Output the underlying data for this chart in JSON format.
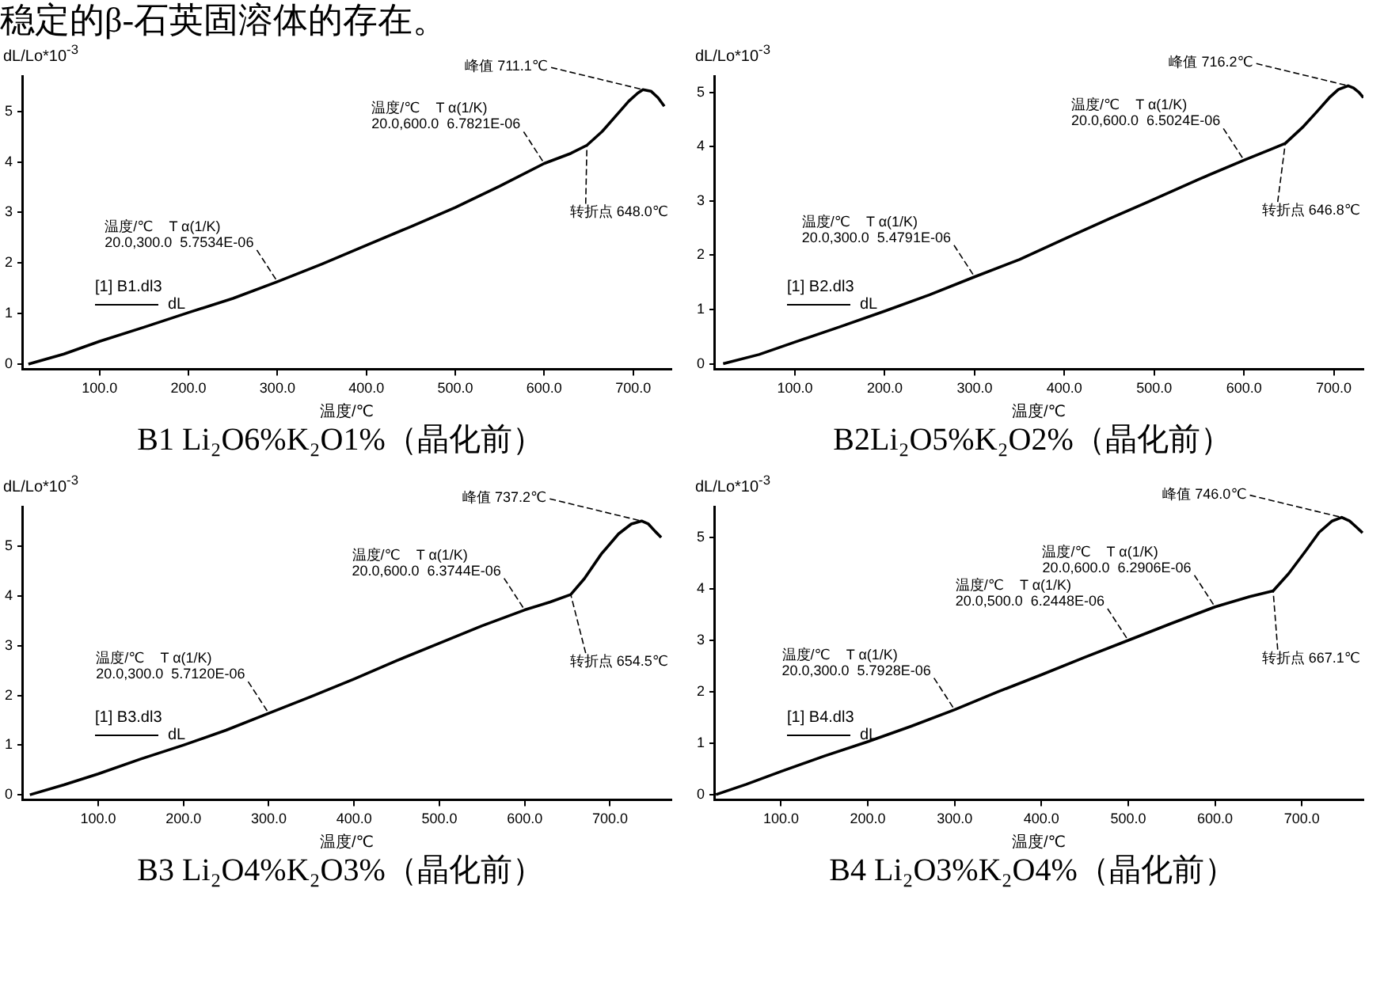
{
  "chart_data": [
    {
      "type": "line",
      "title": "B1 Li₂O6%K₂O1%（晶化前）",
      "annotations": [
        "稳定的β-石英固溶体的存在。",
        {
          "text": "温度/℃    T α(1/K)\n20.0,300.0  5.7534E-06",
          "x": 300,
          "y": 1.63
        },
        {
          "text": "温度/℃    T α(1/K)\n20.0,600.0  6.7821E-06",
          "x": 600,
          "y": 3.97
        },
        {
          "text": "峰值 711.1℃",
          "x": 711,
          "y": 5.43
        },
        {
          "text": "转折点 648.0℃",
          "x": 648,
          "y": 4.33
        }
      ],
      "xlabel": "温度/℃",
      "ylabel": "dL/Lo*10$^{-3}$",
      "legend": "left",
      "legend_title": "[1] B1.dl3",
      "x": [
        20,
        60,
        100,
        150,
        200,
        250,
        300,
        350,
        400,
        450,
        500,
        550,
        600,
        630,
        648,
        665,
        680,
        695,
        705,
        711,
        720,
        728,
        735
      ],
      "series": [
        {
          "name": "dL",
          "color": "#000000",
          "values": [
            0,
            0.2,
            0.45,
            0.73,
            1.02,
            1.3,
            1.63,
            1.98,
            2.35,
            2.72,
            3.1,
            3.52,
            3.97,
            4.17,
            4.33,
            4.6,
            4.9,
            5.2,
            5.36,
            5.43,
            5.4,
            5.27,
            5.1
          ]
        }
      ],
      "xlim": [
        13,
        743
      ],
      "xticks": [
        {
          "value": 100,
          "label": "100.0"
        },
        {
          "value": 200,
          "label": "200.0"
        },
        {
          "value": 300,
          "label": "300.0"
        },
        {
          "value": 400,
          "label": "400.0"
        },
        {
          "value": 500,
          "label": "500.0"
        },
        {
          "value": 600,
          "label": "600.0"
        },
        {
          "value": 700,
          "label": "700.0"
        }
      ],
      "ylim": [
        -0.1,
        5.7
      ],
      "yticks": [
        0,
        1,
        2,
        3,
        4,
        5
      ],
      "grid": false,
      "line_style": "solid",
      "marker": "none"
    },
    {
      "type": "line",
      "title": "B2Li₂O5%K₂O2%（晶化前）",
      "annotations": [
        {
          "text": "温度/℃    T α(1/K)\n20.0,300.0  5.4791E-06",
          "x": 300,
          "y": 1.6
        },
        {
          "text": "温度/℃    T α(1/K)\n20.0,600.0  6.5024E-06",
          "x": 600,
          "y": 3.75
        },
        {
          "text": "峰值 716.2℃",
          "x": 716,
          "y": 5.12
        },
        {
          "text": "转折点 646.8℃",
          "x": 646,
          "y": 4.06
        }
      ],
      "xlabel": "温度/℃",
      "ylabel": "dL/Lo*10$^{-3}$",
      "legend": "left",
      "legend_title": "[1] B2.dl3",
      "x": [
        20,
        60,
        100,
        150,
        200,
        250,
        300,
        350,
        400,
        450,
        500,
        550,
        600,
        630,
        646,
        665,
        680,
        695,
        705,
        716,
        722,
        728,
        733
      ],
      "series": [
        {
          "name": "dL",
          "color": "#000000",
          "values": [
            0,
            0.17,
            0.4,
            0.68,
            0.97,
            1.27,
            1.6,
            1.92,
            2.3,
            2.67,
            3.03,
            3.4,
            3.75,
            3.95,
            4.06,
            4.35,
            4.62,
            4.9,
            5.05,
            5.12,
            5.08,
            5.0,
            4.9
          ]
        }
      ],
      "xlim": [
        10,
        733
      ],
      "xticks": [
        {
          "value": 100,
          "label": "100.0"
        },
        {
          "value": 200,
          "label": "200.0"
        },
        {
          "value": 300,
          "label": "300.0"
        },
        {
          "value": 400,
          "label": "400.0"
        },
        {
          "value": 500,
          "label": "500.0"
        },
        {
          "value": 600,
          "label": "600.0"
        },
        {
          "value": 700,
          "label": "700.0"
        }
      ],
      "ylim": [
        -0.1,
        5.3
      ],
      "yticks": [
        0,
        1,
        2,
        3,
        4,
        5
      ],
      "grid": false,
      "line_style": "solid",
      "marker": "none"
    },
    {
      "type": "line",
      "title": "B3 Li₂O4%K₂O3%（晶化前）",
      "annotations": [
        {
          "text": "温度/℃    T α(1/K)\n20.0,300.0  5.7120E-06",
          "x": 300,
          "y": 1.64
        },
        {
          "text": "温度/℃    T α(1/K)\n20.0,600.0  6.3744E-06",
          "x": 600,
          "y": 3.72
        },
        {
          "text": "峰值 737.2℃",
          "x": 737,
          "y": 5.51
        },
        {
          "text": "转折点 654.5℃",
          "x": 654,
          "y": 4.03
        }
      ],
      "xlabel": "温度/℃",
      "ylabel": "dL/Lo*10$^{-3}$",
      "legend": "left",
      "legend_title": "[1] B3.dl3",
      "x": [
        20,
        60,
        100,
        150,
        200,
        250,
        300,
        350,
        400,
        450,
        500,
        550,
        600,
        630,
        654,
        670,
        690,
        710,
        725,
        737,
        745,
        753,
        760
      ],
      "series": [
        {
          "name": "dL",
          "color": "#000000",
          "values": [
            0,
            0.2,
            0.42,
            0.72,
            1.0,
            1.3,
            1.64,
            1.98,
            2.33,
            2.7,
            3.05,
            3.4,
            3.72,
            3.88,
            4.03,
            4.35,
            4.85,
            5.25,
            5.45,
            5.51,
            5.45,
            5.3,
            5.18
          ]
        }
      ],
      "xlim": [
        11,
        772
      ],
      "xticks": [
        {
          "value": 100,
          "label": "100.0"
        },
        {
          "value": 200,
          "label": "200.0"
        },
        {
          "value": 300,
          "label": "300.0"
        },
        {
          "value": 400,
          "label": "400.0"
        },
        {
          "value": 500,
          "label": "500.0"
        },
        {
          "value": 600,
          "label": "600.0"
        },
        {
          "value": 700,
          "label": "700.0"
        }
      ],
      "ylim": [
        -0.1,
        5.8
      ],
      "yticks": [
        0,
        1,
        2,
        3,
        4,
        5
      ],
      "grid": false,
      "line_style": "solid",
      "marker": "none"
    },
    {
      "type": "line",
      "title": "B4 Li₂O3%K₂O4%（晶化前）",
      "annotations": [
        {
          "text": "温度/℃    T α(1/K)\n20.0,300.0  5.7928E-06",
          "x": 300,
          "y": 1.65
        },
        {
          "text": "温度/℃    T α(1/K)\n20.0,500.0  6.2448E-06",
          "x": 500,
          "y": 3.0
        },
        {
          "text": "温度/℃    T α(1/K)\n20.0,600.0  6.2906E-06",
          "x": 600,
          "y": 3.65
        },
        {
          "text": "峰值 746.0℃",
          "x": 746,
          "y": 5.39
        },
        {
          "text": "转折点 667.1℃",
          "x": 667,
          "y": 3.96
        }
      ],
      "xlabel": "温度/℃",
      "ylabel": "dL/Lo*10$^{-3}$",
      "legend": "left",
      "legend_title": "[1] B4.dl3",
      "x": [
        25,
        60,
        100,
        150,
        200,
        250,
        300,
        350,
        400,
        450,
        500,
        550,
        600,
        640,
        667,
        685,
        705,
        720,
        735,
        746,
        755,
        763,
        770
      ],
      "series": [
        {
          "name": "dL",
          "color": "#000000",
          "values": [
            0,
            0.2,
            0.45,
            0.75,
            1.03,
            1.33,
            1.65,
            2.0,
            2.33,
            2.67,
            3.0,
            3.33,
            3.65,
            3.85,
            3.96,
            4.3,
            4.75,
            5.1,
            5.32,
            5.39,
            5.32,
            5.2,
            5.09
          ]
        }
      ],
      "xlim": [
        23,
        771
      ],
      "xticks": [
        {
          "value": 100,
          "label": "100.0"
        },
        {
          "value": 200,
          "label": "200.0"
        },
        {
          "value": 300,
          "label": "300.0"
        },
        {
          "value": 400,
          "label": "400.0"
        },
        {
          "value": 500,
          "label": "500.0"
        },
        {
          "value": 600,
          "label": "600.0"
        },
        {
          "value": 700,
          "label": "700.0"
        }
      ],
      "ylim": [
        -0.1,
        5.6
      ],
      "yticks": [
        0,
        1,
        2,
        3,
        4,
        5
      ],
      "grid": false,
      "line_style": "solid",
      "marker": "none"
    }
  ]
}
